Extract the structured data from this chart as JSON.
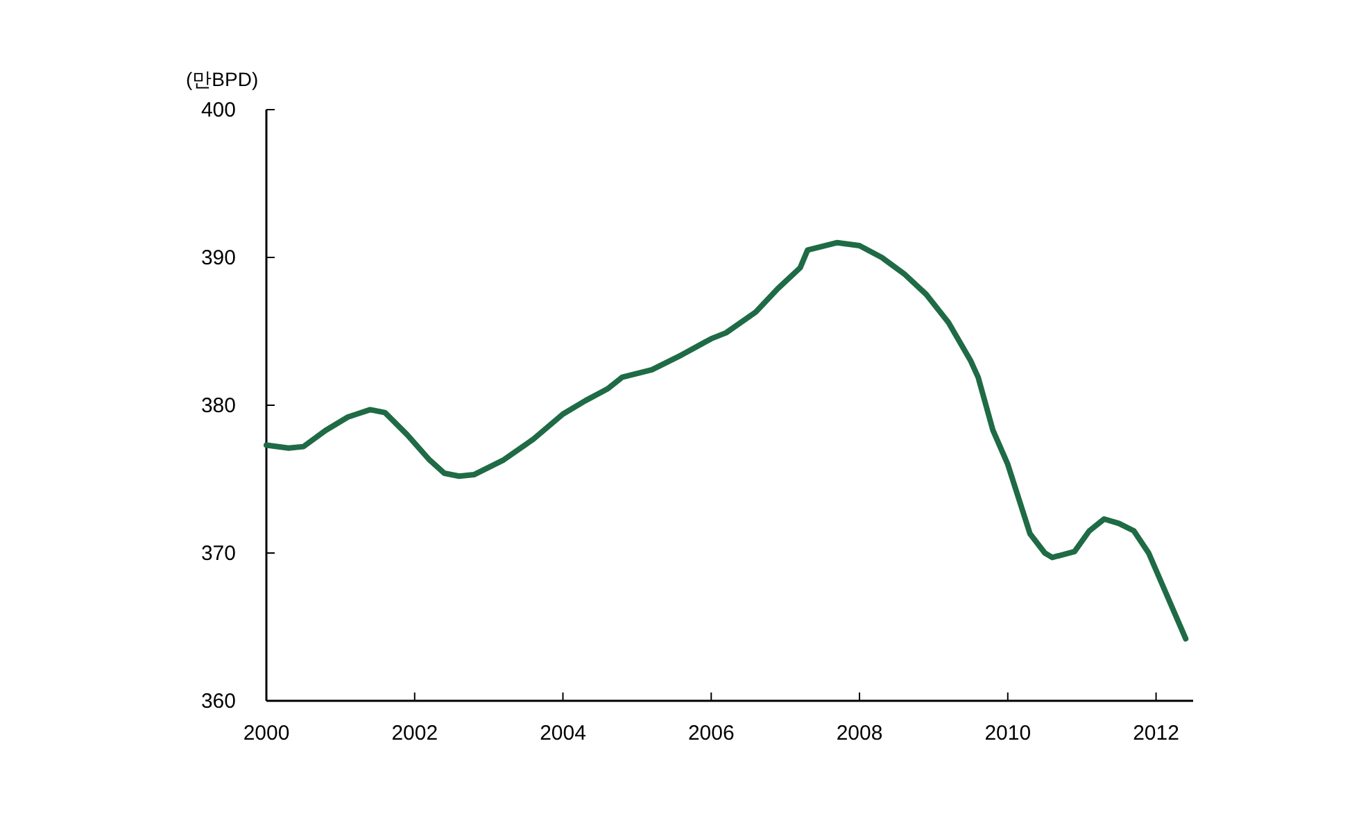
{
  "chart_data": {
    "type": "line",
    "ylabel": "(만BPD)",
    "xlim": [
      2000,
      2012.5
    ],
    "xticks": [
      2000,
      2002,
      2004,
      2006,
      2008,
      2010,
      2012
    ],
    "ylim": [
      360,
      400
    ],
    "yticks": [
      360,
      370,
      380,
      390,
      400
    ],
    "grid": false,
    "series": [
      {
        "color": "#1e6b45",
        "line_style": "solid",
        "x": [
          2000,
          2000.3,
          2000.5,
          2000.8,
          2001.1,
          2001.4,
          2001.6,
          2001.9,
          2002.2,
          2002.4,
          2002.6,
          2002.8,
          2003.2,
          2003.6,
          2004,
          2004.3,
          2004.6,
          2004.8,
          2005.2,
          2005.6,
          2006,
          2006.2,
          2006.6,
          2006.9,
          2007.2,
          2007.3,
          2007.7,
          2008,
          2008.3,
          2008.6,
          2008.9,
          2009.2,
          2009.5,
          2009.6,
          2009.8,
          2010,
          2010.3,
          2010.5,
          2010.6,
          2010.9,
          2011.1,
          2011.3,
          2011.5,
          2011.7,
          2011.9,
          2012.4
        ],
        "values": [
          377.3,
          377.1,
          377.2,
          378.3,
          379.2,
          379.7,
          379.5,
          378.0,
          376.3,
          375.4,
          375.2,
          375.3,
          376.3,
          377.7,
          379.4,
          380.3,
          381.1,
          381.9,
          382.4,
          383.4,
          384.5,
          384.9,
          386.3,
          387.9,
          389.3,
          390.5,
          391.0,
          390.8,
          390.0,
          388.9,
          387.5,
          385.6,
          383.0,
          381.9,
          378.3,
          376.0,
          371.3,
          370.0,
          369.7,
          370.1,
          371.5,
          372.3,
          372.0,
          371.5,
          370.0,
          364.2
        ]
      }
    ]
  }
}
